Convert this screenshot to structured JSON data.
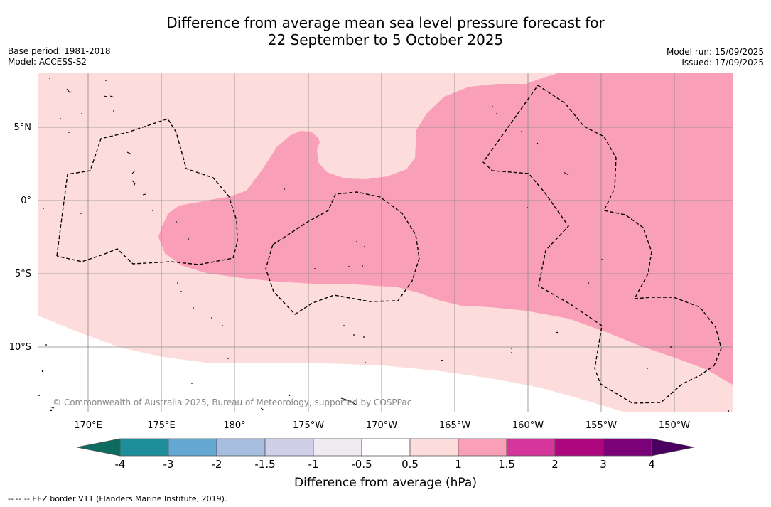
{
  "header": {
    "title_line1": "Difference from average mean sea level pressure forecast for",
    "title_line2": "22 September to 5 October 2025",
    "base_period": "Base period: 1981-2018",
    "model": "Model: ACCESS-S2",
    "model_run": "Model run: 15/09/2025",
    "issued": "Issued: 17/09/2025"
  },
  "map": {
    "lat_labels": [
      "5°N",
      "0°",
      "5°S",
      "10°S"
    ],
    "lon_labels": [
      "170°E",
      "175°E",
      "180°",
      "175°W",
      "170°W",
      "165°W",
      "160°W",
      "155°W",
      "150°W"
    ],
    "copyright": "© Commonwealth of Australia 2025, Bureau of Meteorology, supported by COSPPac",
    "colors": {
      "band_0_5_to_1": "#fddddc",
      "band_1_to_1_5": "#f9a0b8",
      "grid": "#888888",
      "eez": "#000000"
    }
  },
  "colorbar": {
    "ticks": [
      "-4",
      "-3",
      "-2",
      "-1.5",
      "-1",
      "-0.5",
      "0.5",
      "1",
      "1.5",
      "2",
      "3",
      "4"
    ],
    "colors": [
      "#0e6b60",
      "#1e8f9a",
      "#65a8d3",
      "#a6bddf",
      "#cfd0e8",
      "#efebf1",
      "#ffffff",
      "#fddddc",
      "#f9a0b8",
      "#d6359c",
      "#ad067e",
      "#7a0177",
      "#4a0061"
    ],
    "label": "Difference from average (hPa)"
  },
  "footnote": "--  --  -- EEZ border V11 (Flanders Marine Institute, 2019)."
}
